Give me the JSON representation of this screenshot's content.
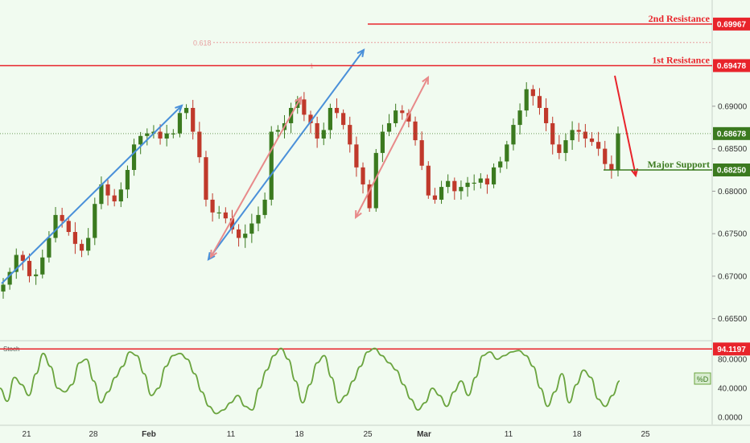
{
  "colors": {
    "background": "#f1fbf0",
    "resistance": "#e8242b",
    "support": "#3b7a1f",
    "current_price": "#3b7a1f",
    "stoch_line": "#6aa43e",
    "trend_up": "#4a90d9",
    "trend_pink": "#e88a8a",
    "candle_up": "#3b7a1f",
    "candle_down": "#c0392b"
  },
  "chart_data": [
    {
      "type": "candlestick",
      "panel": "price",
      "x_ticks": [
        "21",
        "28",
        "Feb",
        "11",
        "18",
        "25",
        "Mar",
        "11",
        "18",
        "25"
      ],
      "y_ticks": [
        "0.69000",
        "0.68500",
        "0.68000",
        "0.67500",
        "0.67000",
        "0.66500"
      ],
      "ylim": [
        0.6625,
        0.7025
      ],
      "levels": [
        {
          "name": "2nd Resistance",
          "value": 0.69967,
          "tag": "0.69967"
        },
        {
          "name": "1st Resistance",
          "value": 0.69478,
          "tag": "0.69478"
        },
        {
          "name": "Major Support",
          "value": 0.6825,
          "tag": "0.68250"
        }
      ],
      "current_price": {
        "value": 0.68678,
        "tag": "0.68678"
      },
      "fib_label": "0.618",
      "fib_value": 0.6975,
      "fib_marker": "1",
      "closes": [
        0.669,
        0.6705,
        0.6725,
        0.6718,
        0.67,
        0.6702,
        0.6722,
        0.6745,
        0.6772,
        0.6765,
        0.6752,
        0.6738,
        0.673,
        0.6745,
        0.6785,
        0.6808,
        0.6795,
        0.6788,
        0.6802,
        0.6825,
        0.6855,
        0.6865,
        0.6868,
        0.687,
        0.6862,
        0.6868,
        0.6868,
        0.6892,
        0.6898,
        0.687,
        0.684,
        0.679,
        0.6775,
        0.6775,
        0.6768,
        0.6755,
        0.6745,
        0.675,
        0.6762,
        0.6772,
        0.679,
        0.687,
        0.6872,
        0.688,
        0.6898,
        0.6908,
        0.689,
        0.688,
        0.6862,
        0.6872,
        0.6898,
        0.6892,
        0.6878,
        0.6855,
        0.6828,
        0.6808,
        0.678,
        0.6845,
        0.687,
        0.688,
        0.6895,
        0.6892,
        0.6882,
        0.686,
        0.683,
        0.6795,
        0.679,
        0.6805,
        0.6812,
        0.68,
        0.6805,
        0.681,
        0.681,
        0.6815,
        0.6808,
        0.6828,
        0.6835,
        0.6855,
        0.6878,
        0.6895,
        0.692,
        0.6912,
        0.6898,
        0.688,
        0.6855,
        0.6845,
        0.686,
        0.6872,
        0.687,
        0.6862,
        0.6858,
        0.685,
        0.6832,
        0.6825,
        0.6868
      ],
      "time_range": "late Jan to mid Mar"
    },
    {
      "type": "line",
      "panel": "stochastic",
      "title": "Stoch",
      "legend": "%D",
      "level": {
        "value": 94.1197,
        "tag": "94.1197"
      },
      "y_ticks": [
        "80.0000",
        "40.0000",
        "0.0000"
      ],
      "ylim": [
        -10,
        100
      ],
      "values": [
        40,
        22,
        55,
        45,
        30,
        60,
        88,
        70,
        40,
        35,
        45,
        75,
        80,
        50,
        20,
        35,
        55,
        70,
        90,
        85,
        60,
        30,
        40,
        70,
        85,
        88,
        80,
        60,
        35,
        15,
        5,
        10,
        20,
        30,
        15,
        10,
        40,
        65,
        85,
        95,
        80,
        50,
        20,
        45,
        75,
        85,
        55,
        20,
        30,
        50,
        70,
        90,
        95,
        85,
        75,
        65,
        45,
        25,
        10,
        20,
        40,
        30,
        15,
        35,
        50,
        30,
        55,
        85,
        90,
        80,
        85,
        90,
        92,
        85,
        70,
        40,
        15,
        35,
        60,
        20,
        45,
        65,
        55,
        25,
        15,
        30,
        50
      ]
    }
  ]
}
